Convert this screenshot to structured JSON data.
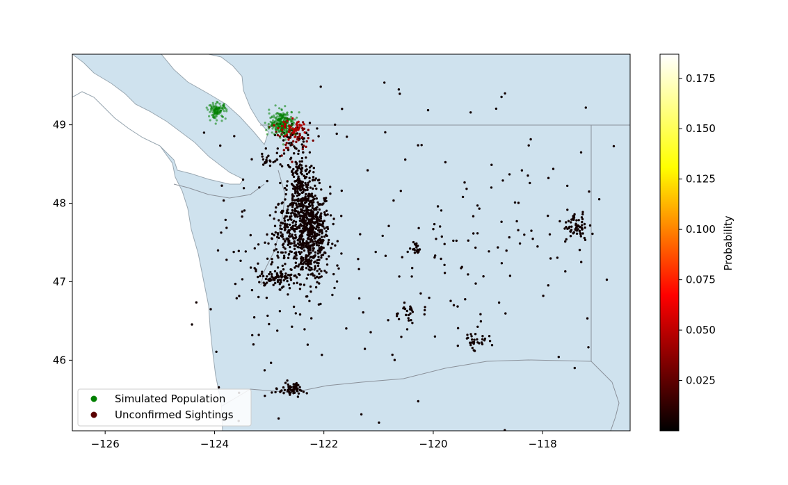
{
  "chart_data": {
    "type": "scatter",
    "title": "",
    "xlabel": "",
    "ylabel": "",
    "xlim": [
      -126.6,
      -116.4
    ],
    "ylim": [
      45.1,
      49.9
    ],
    "x_ticks": [
      -126,
      -124,
      -122,
      -120,
      -118
    ],
    "y_ticks": [
      46,
      47,
      48,
      49
    ],
    "x_tick_labels": [
      "−126",
      "−124",
      "−122",
      "−120",
      "−118"
    ],
    "y_tick_labels": [
      "46",
      "47",
      "48",
      "49"
    ],
    "grid": false,
    "legend_position": "lower-left",
    "legend": [
      {
        "label": "Simulated Population",
        "color": "#008000"
      },
      {
        "label": "Unconfirmed Sightings",
        "color": "#5a0000"
      }
    ],
    "colorbar": {
      "label": "Probability",
      "colormap": "hot",
      "range": [
        0.0,
        0.187
      ],
      "ticks": [
        0.025,
        0.05,
        0.075,
        0.1,
        0.125,
        0.15,
        0.175
      ],
      "tick_labels": [
        "0.025",
        "0.050",
        "0.075",
        "0.100",
        "0.125",
        "0.150",
        "0.175"
      ]
    },
    "series": [
      {
        "name": "Simulated Population",
        "color": "#008000",
        "clusters": [
          {
            "center": [
              -123.95,
              49.18
            ],
            "spread": [
              0.08,
              0.05
            ],
            "count": 110
          },
          {
            "center": [
              -122.75,
              49.02
            ],
            "spread": [
              0.12,
              0.08
            ],
            "count": 260
          }
        ]
      },
      {
        "name": "Unconfirmed Sightings",
        "color": "#5a0000",
        "clusters": [
          {
            "center": [
              -122.25,
              47.6
            ],
            "spread": [
              0.18,
              0.3
            ],
            "count": 600
          },
          {
            "center": [
              -122.45,
              48.2
            ],
            "spread": [
              0.12,
              0.25
            ],
            "count": 200
          },
          {
            "center": [
              -122.55,
              48.85
            ],
            "spread": [
              0.2,
              0.1
            ],
            "count": 90
          },
          {
            "center": [
              -122.85,
              47.05
            ],
            "spread": [
              0.15,
              0.05
            ],
            "count": 80
          },
          {
            "center": [
              -122.7,
              47.65
            ],
            "spread": [
              0.12,
              0.2
            ],
            "count": 120
          },
          {
            "center": [
              -122.6,
              45.63
            ],
            "spread": [
              0.12,
              0.04
            ],
            "count": 60
          },
          {
            "center": [
              -117.4,
              47.7
            ],
            "spread": [
              0.12,
              0.08
            ],
            "count": 60
          },
          {
            "center": [
              -120.3,
              47.42
            ],
            "spread": [
              0.05,
              0.05
            ],
            "count": 20
          },
          {
            "center": [
              -119.25,
              46.25
            ],
            "spread": [
              0.12,
              0.05
            ],
            "count": 30
          },
          {
            "center": [
              -120.5,
              46.6
            ],
            "spread": [
              0.12,
              0.08
            ],
            "count": 25
          },
          {
            "center": [
              -123.0,
              48.55
            ],
            "spread": [
              0.15,
              0.05
            ],
            "count": 25
          },
          {
            "center": [
              -119.5,
              47.5
            ],
            "spread": [
              1.5,
              0.9
            ],
            "count": 160
          },
          {
            "center": [
              -123.3,
              46.9
            ],
            "spread": [
              0.6,
              0.7
            ],
            "count": 80
          }
        ],
        "sightings": [
          {
            "x": -122.3,
            "y": 47.6
          },
          {
            "x": -122.4,
            "y": 48.75
          },
          {
            "x": -117.4,
            "y": 47.66
          }
        ]
      }
    ]
  }
}
